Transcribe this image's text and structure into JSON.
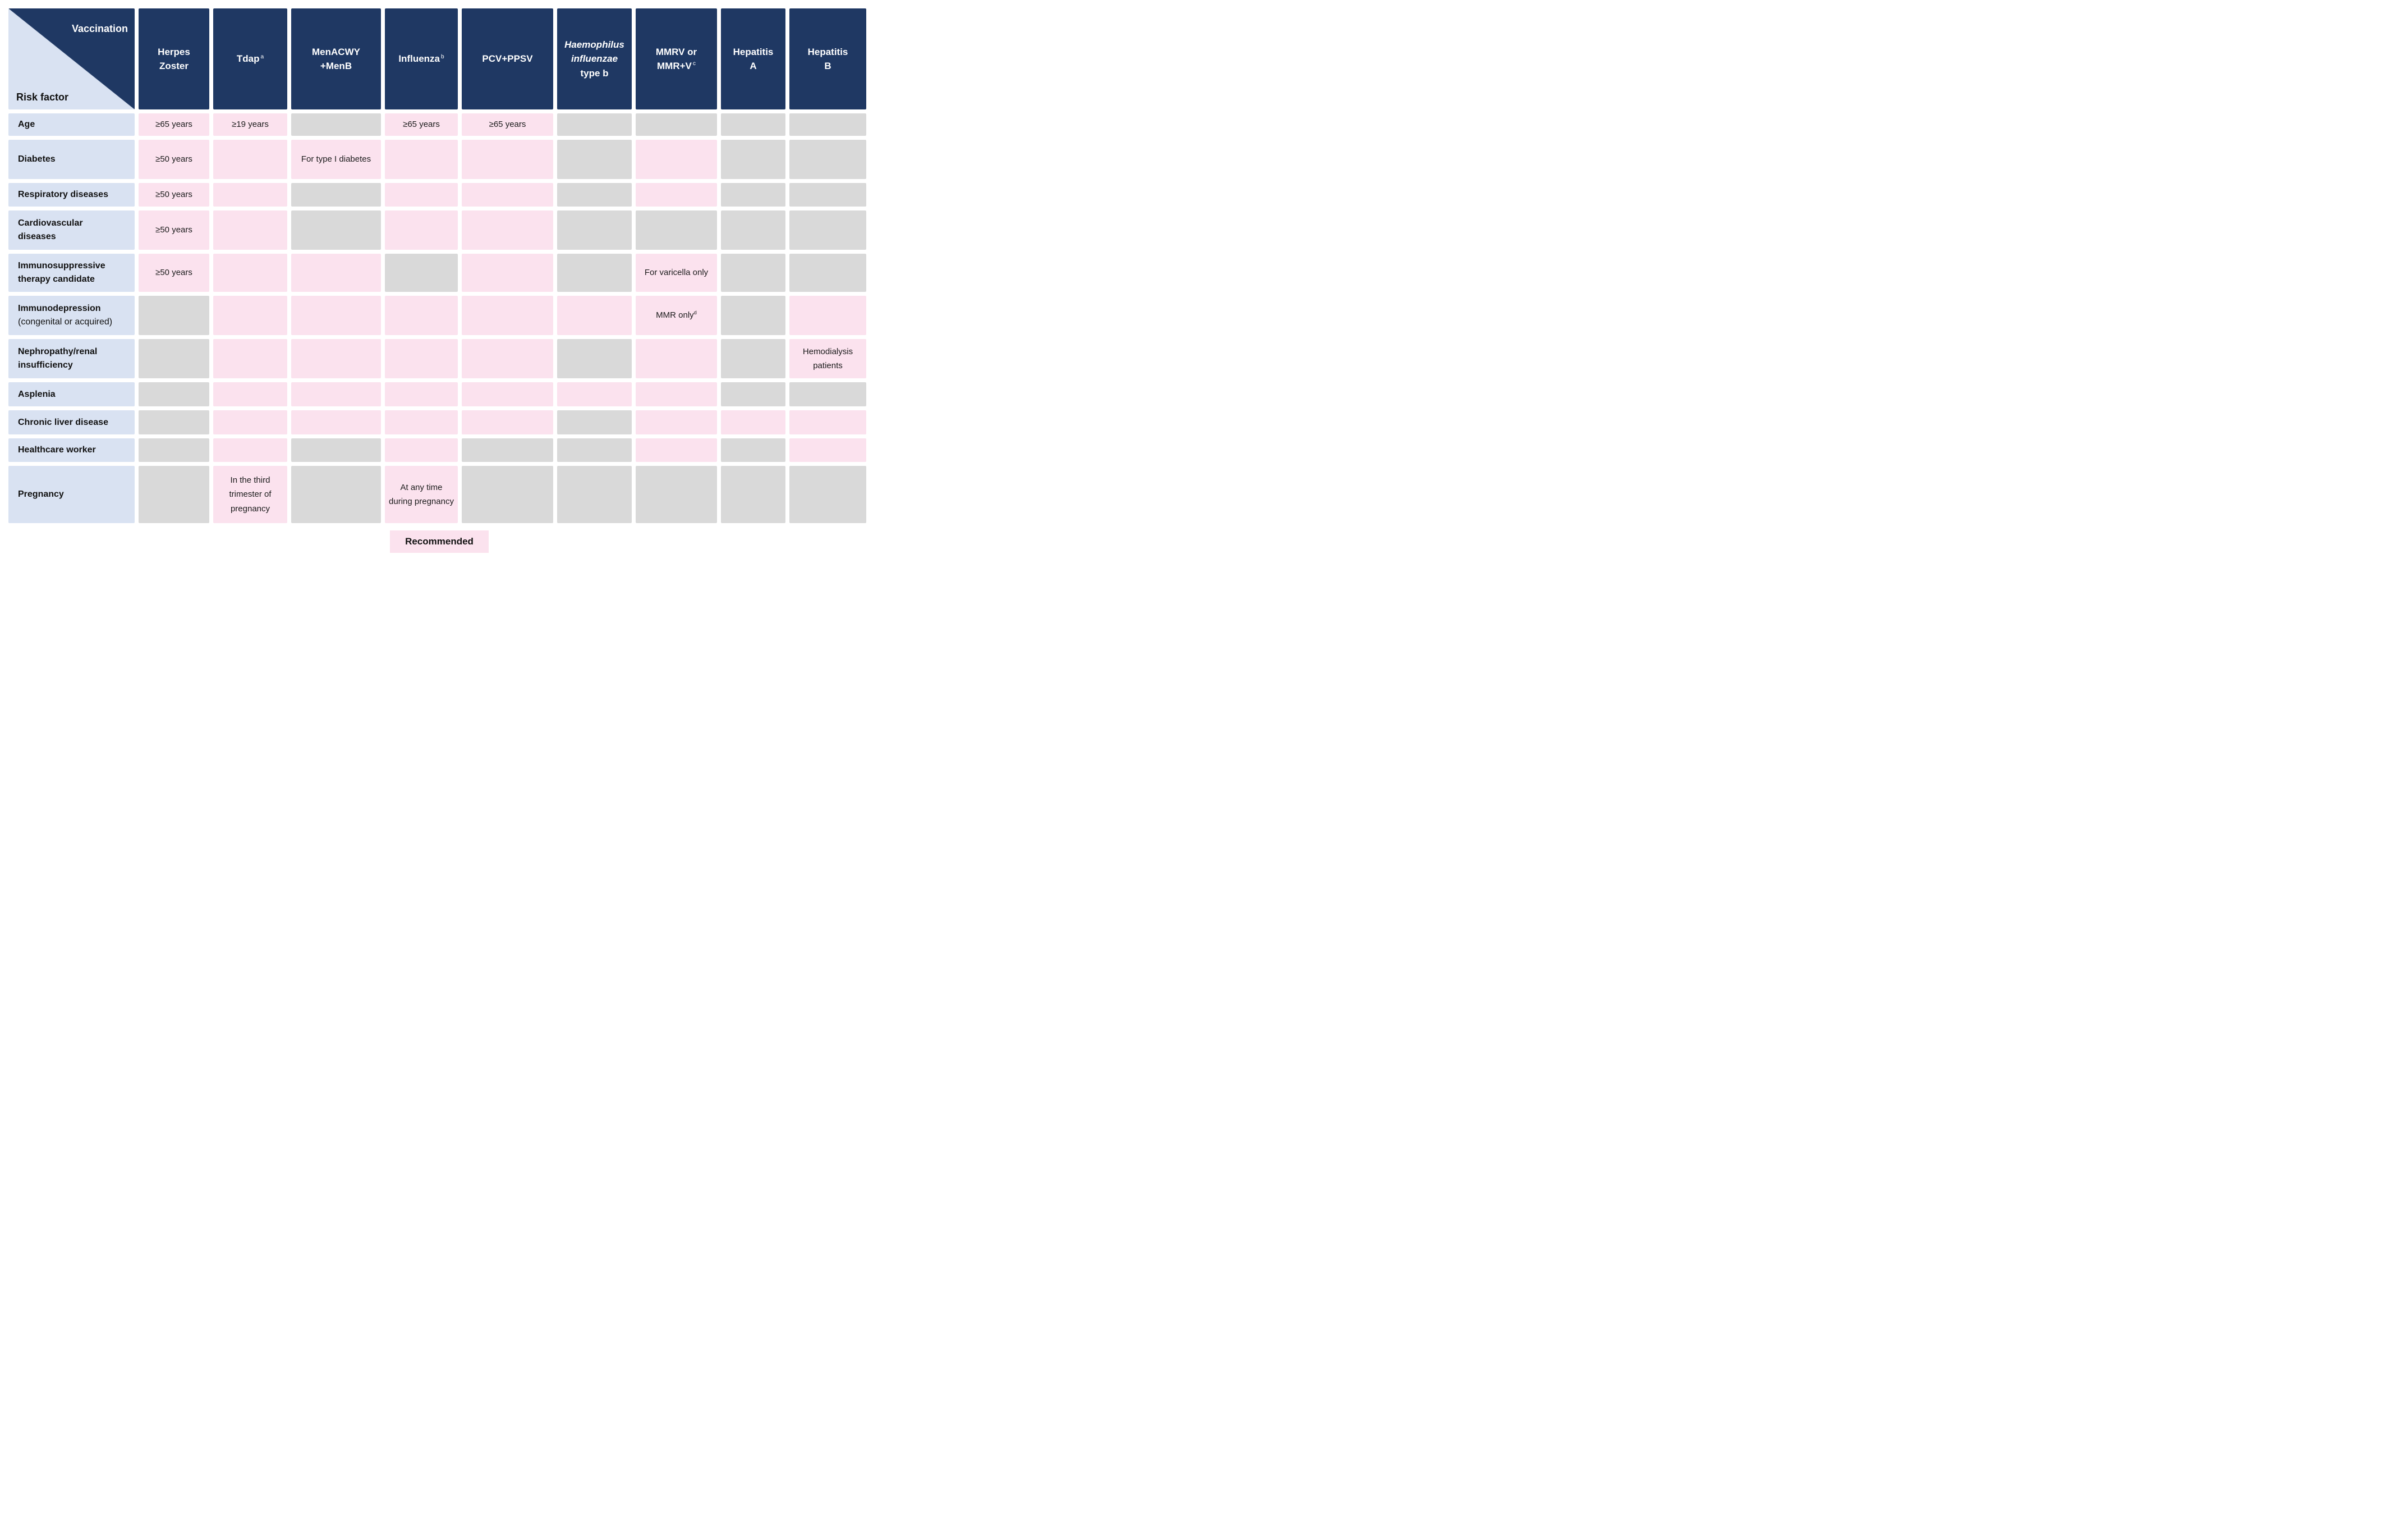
{
  "table": {
    "corner": {
      "top_label": "Vaccination",
      "bottom_label": "Risk factor"
    },
    "columns": [
      {
        "id": "herpes-zoster",
        "lines": [
          {
            "text": "Herpes"
          },
          {
            "text": "Zoster"
          }
        ]
      },
      {
        "id": "tdap",
        "lines": [
          {
            "text": "Tdap",
            "sup": "a"
          }
        ]
      },
      {
        "id": "menacwy-menb",
        "lines": [
          {
            "text": "MenACWY"
          },
          {
            "text": "+MenB"
          }
        ]
      },
      {
        "id": "influenza",
        "lines": [
          {
            "text": "Influenza",
            "sup": "b"
          }
        ]
      },
      {
        "id": "pcv-ppsv",
        "lines": [
          {
            "text": "PCV+PPSV"
          }
        ]
      },
      {
        "id": "haemophilus-influenzae-type-b",
        "lines": [
          {
            "text": "Haemophilus",
            "italic": true
          },
          {
            "text": "influenzae",
            "italic": true
          },
          {
            "text": "type b"
          }
        ]
      },
      {
        "id": "mmrv-or-mmr-v",
        "lines": [
          {
            "text": "MMRV or"
          },
          {
            "text": "MMR+V",
            "sup": "c"
          }
        ]
      },
      {
        "id": "hepatitis-a",
        "lines": [
          {
            "text": "Hepatitis"
          },
          {
            "text": "A"
          }
        ]
      },
      {
        "id": "hepatitis-b",
        "lines": [
          {
            "text": "Hepatitis"
          },
          {
            "text": "B"
          }
        ]
      }
    ],
    "rows": [
      {
        "id": "age",
        "label_lines": [
          {
            "text": "Age"
          }
        ],
        "cells": [
          {
            "recommended": true,
            "text": "≥65 years"
          },
          {
            "recommended": true,
            "text": "≥19 years"
          },
          {
            "recommended": false
          },
          {
            "recommended": true,
            "text": "≥65 years"
          },
          {
            "recommended": true,
            "text": "≥65 years"
          },
          {
            "recommended": false
          },
          {
            "recommended": false
          },
          {
            "recommended": false
          },
          {
            "recommended": false
          }
        ]
      },
      {
        "id": "diabetes",
        "label_lines": [
          {
            "text": "Diabetes"
          }
        ],
        "cells": [
          {
            "recommended": true,
            "text": "≥50 years"
          },
          {
            "recommended": true
          },
          {
            "recommended": true,
            "text": "For type I diabetes"
          },
          {
            "recommended": true
          },
          {
            "recommended": true
          },
          {
            "recommended": false
          },
          {
            "recommended": true
          },
          {
            "recommended": false
          },
          {
            "recommended": false
          }
        ]
      },
      {
        "id": "respiratory-diseases",
        "label_lines": [
          {
            "text": "Respiratory diseases"
          }
        ],
        "cells": [
          {
            "recommended": true,
            "text": "≥50 years"
          },
          {
            "recommended": true
          },
          {
            "recommended": false
          },
          {
            "recommended": true
          },
          {
            "recommended": true
          },
          {
            "recommended": false
          },
          {
            "recommended": true
          },
          {
            "recommended": false
          },
          {
            "recommended": false
          }
        ]
      },
      {
        "id": "cardiovascular-diseases",
        "label_lines": [
          {
            "text": "Cardiovascular"
          },
          {
            "text": "diseases"
          }
        ],
        "cells": [
          {
            "recommended": true,
            "text": "≥50 years"
          },
          {
            "recommended": true
          },
          {
            "recommended": false
          },
          {
            "recommended": true
          },
          {
            "recommended": true
          },
          {
            "recommended": false
          },
          {
            "recommended": false
          },
          {
            "recommended": false
          },
          {
            "recommended": false
          }
        ]
      },
      {
        "id": "immunosuppressive-therapy-candidate",
        "label_lines": [
          {
            "text": "Immunosuppressive"
          },
          {
            "text": "therapy candidate"
          }
        ],
        "cells": [
          {
            "recommended": true,
            "text": "≥50 years"
          },
          {
            "recommended": true
          },
          {
            "recommended": true
          },
          {
            "recommended": false
          },
          {
            "recommended": true
          },
          {
            "recommended": false
          },
          {
            "recommended": true,
            "text": "For varicella only"
          },
          {
            "recommended": false
          },
          {
            "recommended": false
          }
        ]
      },
      {
        "id": "immunodepression",
        "label_lines": [
          {
            "text": "Immunodepression"
          },
          {
            "text": "(congenital or acquired)",
            "bold": false
          }
        ],
        "cells": [
          {
            "recommended": false
          },
          {
            "recommended": true
          },
          {
            "recommended": true
          },
          {
            "recommended": true
          },
          {
            "recommended": true
          },
          {
            "recommended": true
          },
          {
            "recommended": true,
            "text": "MMR only",
            "sup": "d"
          },
          {
            "recommended": false
          },
          {
            "recommended": true
          }
        ]
      },
      {
        "id": "nephropathy-renal-insufficiency",
        "label_lines": [
          {
            "text": "Nephropathy/renal"
          },
          {
            "text": "insufficiency"
          }
        ],
        "cells": [
          {
            "recommended": false
          },
          {
            "recommended": true
          },
          {
            "recommended": true
          },
          {
            "recommended": true
          },
          {
            "recommended": true
          },
          {
            "recommended": false
          },
          {
            "recommended": true
          },
          {
            "recommended": false
          },
          {
            "recommended": true,
            "text": "Hemodialysis patients"
          }
        ]
      },
      {
        "id": "asplenia",
        "label_lines": [
          {
            "text": "Asplenia"
          }
        ],
        "cells": [
          {
            "recommended": false
          },
          {
            "recommended": true
          },
          {
            "recommended": true
          },
          {
            "recommended": true
          },
          {
            "recommended": true
          },
          {
            "recommended": true
          },
          {
            "recommended": true
          },
          {
            "recommended": false
          },
          {
            "recommended": false
          }
        ]
      },
      {
        "id": "chronic-liver-disease",
        "label_lines": [
          {
            "text": "Chronic liver disease"
          }
        ],
        "cells": [
          {
            "recommended": false
          },
          {
            "recommended": true
          },
          {
            "recommended": true
          },
          {
            "recommended": true
          },
          {
            "recommended": true
          },
          {
            "recommended": false
          },
          {
            "recommended": true
          },
          {
            "recommended": true
          },
          {
            "recommended": true
          }
        ]
      },
      {
        "id": "healthcare-worker",
        "label_lines": [
          {
            "text": "Healthcare worker"
          }
        ],
        "cells": [
          {
            "recommended": false
          },
          {
            "recommended": true
          },
          {
            "recommended": false
          },
          {
            "recommended": true
          },
          {
            "recommended": false
          },
          {
            "recommended": false
          },
          {
            "recommended": true
          },
          {
            "recommended": false
          },
          {
            "recommended": true
          }
        ]
      },
      {
        "id": "pregnancy",
        "label_lines": [
          {
            "text": "Pregnancy"
          }
        ],
        "cells": [
          {
            "recommended": false
          },
          {
            "recommended": true,
            "text": "In the third trimester of pregnancy"
          },
          {
            "recommended": false
          },
          {
            "recommended": true,
            "text": "At any time during pregnancy"
          },
          {
            "recommended": false
          },
          {
            "recommended": false
          },
          {
            "recommended": false
          },
          {
            "recommended": false
          },
          {
            "recommended": false
          }
        ]
      }
    ],
    "legend": {
      "label": "Recommended"
    },
    "colors": {
      "header_navy": "#1F3863",
      "row_label_blue": "#D9E2F2",
      "recommended_pink": "#FBE2EE",
      "not_recommended_gray": "#D9D9D9"
    }
  },
  "chart_data": {
    "type": "table",
    "title": "Vaccination recommendations by risk factor",
    "columns": [
      "Herpes Zoster",
      "Tdap",
      "MenACWY+MenB",
      "Influenza",
      "PCV+PPSV",
      "Haemophilus influenzae type b",
      "MMRV or MMR+V",
      "Hepatitis A",
      "Hepatitis B"
    ],
    "rows": [
      "Age",
      "Diabetes",
      "Respiratory diseases",
      "Cardiovascular diseases",
      "Immunosuppressive therapy candidate",
      "Immunodepression (congenital or acquired)",
      "Nephropathy/renal insufficiency",
      "Asplenia",
      "Chronic liver disease",
      "Healthcare worker",
      "Pregnancy"
    ],
    "values": [
      [
        1,
        1,
        0,
        1,
        1,
        0,
        0,
        0,
        0
      ],
      [
        1,
        1,
        1,
        1,
        1,
        0,
        1,
        0,
        0
      ],
      [
        1,
        1,
        0,
        1,
        1,
        0,
        1,
        0,
        0
      ],
      [
        1,
        1,
        0,
        1,
        1,
        0,
        0,
        0,
        0
      ],
      [
        1,
        1,
        1,
        0,
        1,
        0,
        1,
        0,
        0
      ],
      [
        0,
        1,
        1,
        1,
        1,
        1,
        1,
        0,
        1
      ],
      [
        0,
        1,
        1,
        1,
        1,
        0,
        1,
        0,
        1
      ],
      [
        0,
        1,
        1,
        1,
        1,
        1,
        1,
        0,
        0
      ],
      [
        0,
        1,
        1,
        1,
        1,
        0,
        1,
        1,
        1
      ],
      [
        0,
        1,
        0,
        1,
        0,
        0,
        1,
        0,
        1
      ],
      [
        0,
        1,
        0,
        1,
        0,
        0,
        0,
        0,
        0
      ]
    ],
    "value_meaning": {
      "1": "Recommended (pink)",
      "0": "Not recommended (gray)"
    },
    "cell_notes": [
      [
        "≥65 years",
        "≥19 years",
        "",
        "≥65 years",
        "≥65 years",
        "",
        "",
        "",
        ""
      ],
      [
        "≥50 years",
        "",
        "For type I diabetes",
        "",
        "",
        "",
        "",
        "",
        ""
      ],
      [
        "≥50 years",
        "",
        "",
        "",
        "",
        "",
        "",
        "",
        ""
      ],
      [
        "≥50 years",
        "",
        "",
        "",
        "",
        "",
        "",
        "",
        ""
      ],
      [
        "≥50 years",
        "",
        "",
        "",
        "",
        "",
        "For varicella only",
        "",
        ""
      ],
      [
        "",
        "",
        "",
        "",
        "",
        "",
        "MMR only (d)",
        "",
        ""
      ],
      [
        "",
        "",
        "",
        "",
        "",
        "",
        "",
        "",
        "Hemodialysis patients"
      ],
      [
        "",
        "",
        "",
        "",
        "",
        "",
        "",
        "",
        ""
      ],
      [
        "",
        "",
        "",
        "",
        "",
        "",
        "",
        "",
        ""
      ],
      [
        "",
        "",
        "",
        "",
        "",
        "",
        "",
        "",
        ""
      ],
      [
        "",
        "In the third trimester of pregnancy",
        "",
        "At any time during pregnancy",
        "",
        "",
        "",
        "",
        ""
      ]
    ],
    "superscript_markers": {
      "Tdap": "a",
      "Influenza": "b",
      "MMR+V": "c",
      "MMR only": "d"
    },
    "legend_entries": [
      "Recommended"
    ],
    "legend_position": "bottom-center",
    "grid": false
  }
}
